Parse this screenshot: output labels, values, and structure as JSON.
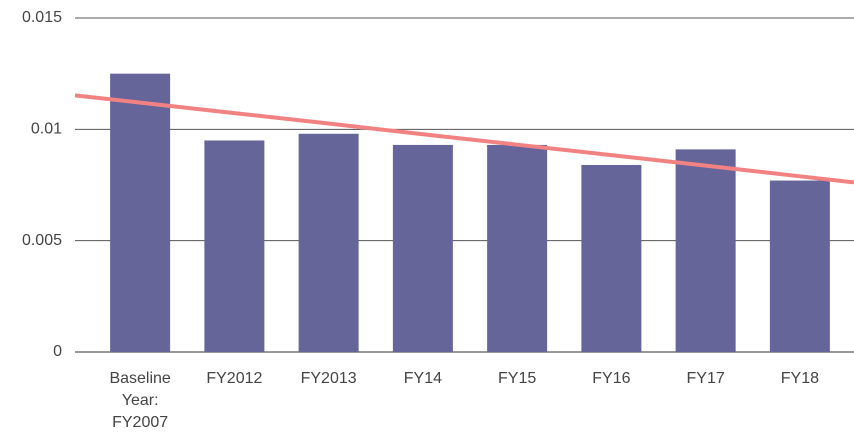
{
  "chart_data": {
    "type": "bar",
    "categories": [
      "Baseline Year: FY2007",
      "FY2012",
      "FY2013",
      "FY14",
      "FY15",
      "FY16",
      "FY17",
      "FY18"
    ],
    "series": [
      {
        "type": "bar",
        "color": "#65659a",
        "values": [
          0.0125,
          0.0095,
          0.0098,
          0.0093,
          0.0093,
          0.0084,
          0.0091,
          0.0077
        ]
      },
      {
        "type": "line",
        "color": "#f28282",
        "values": [
          0.0112,
          0.01073,
          0.01026,
          0.00978,
          0.00931,
          0.00884,
          0.00837,
          0.00789
        ]
      }
    ],
    "ylim": [
      0,
      0.015
    ],
    "yticks": [
      0,
      0.005,
      0.01,
      0.015
    ],
    "grid": true
  }
}
